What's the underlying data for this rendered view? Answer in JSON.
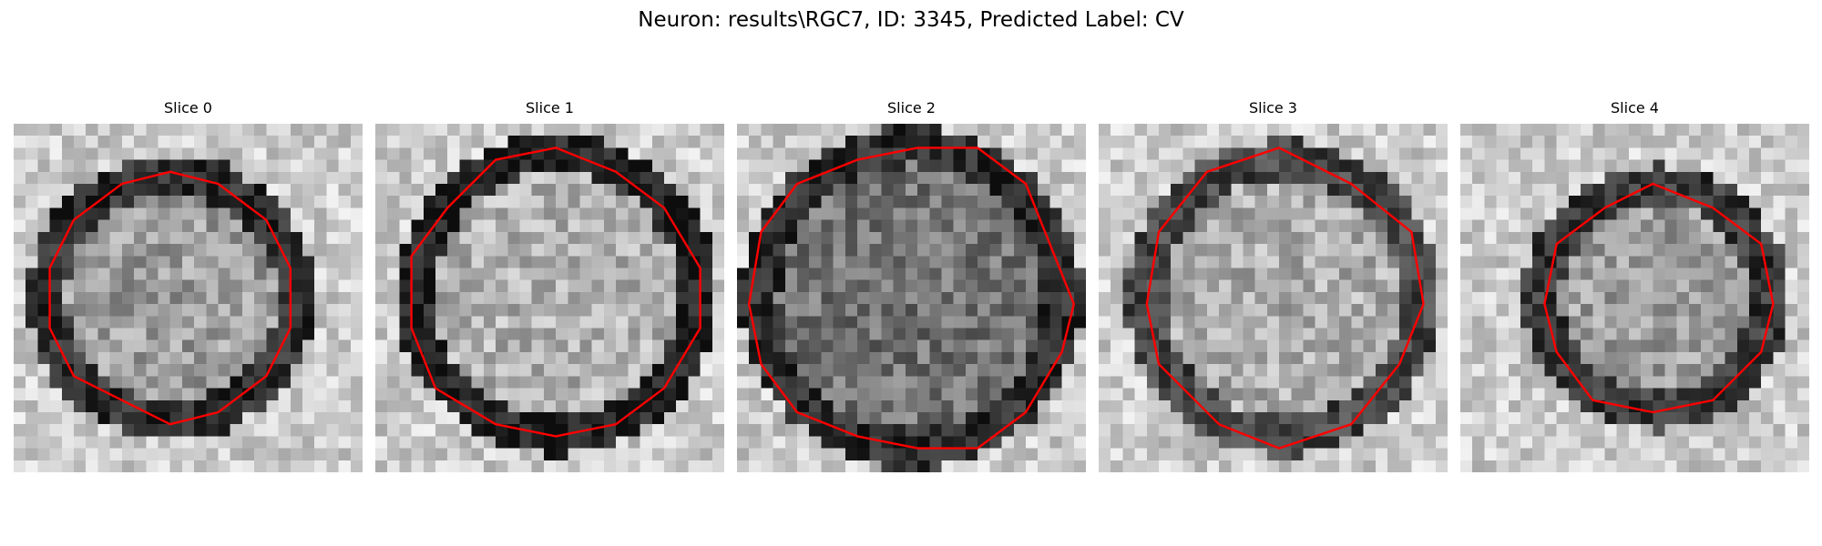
{
  "title": "Neuron: results\\RGC7, ID: 3345, Predicted Label: CV",
  "panels": [
    {
      "title": "Slice 0"
    },
    {
      "title": "Slice 1"
    },
    {
      "title": "Slice 2"
    },
    {
      "title": "Slice 3"
    },
    {
      "title": "Slice 4"
    }
  ],
  "colors": {
    "contour": "#ff0000",
    "colormap": "gray"
  }
}
